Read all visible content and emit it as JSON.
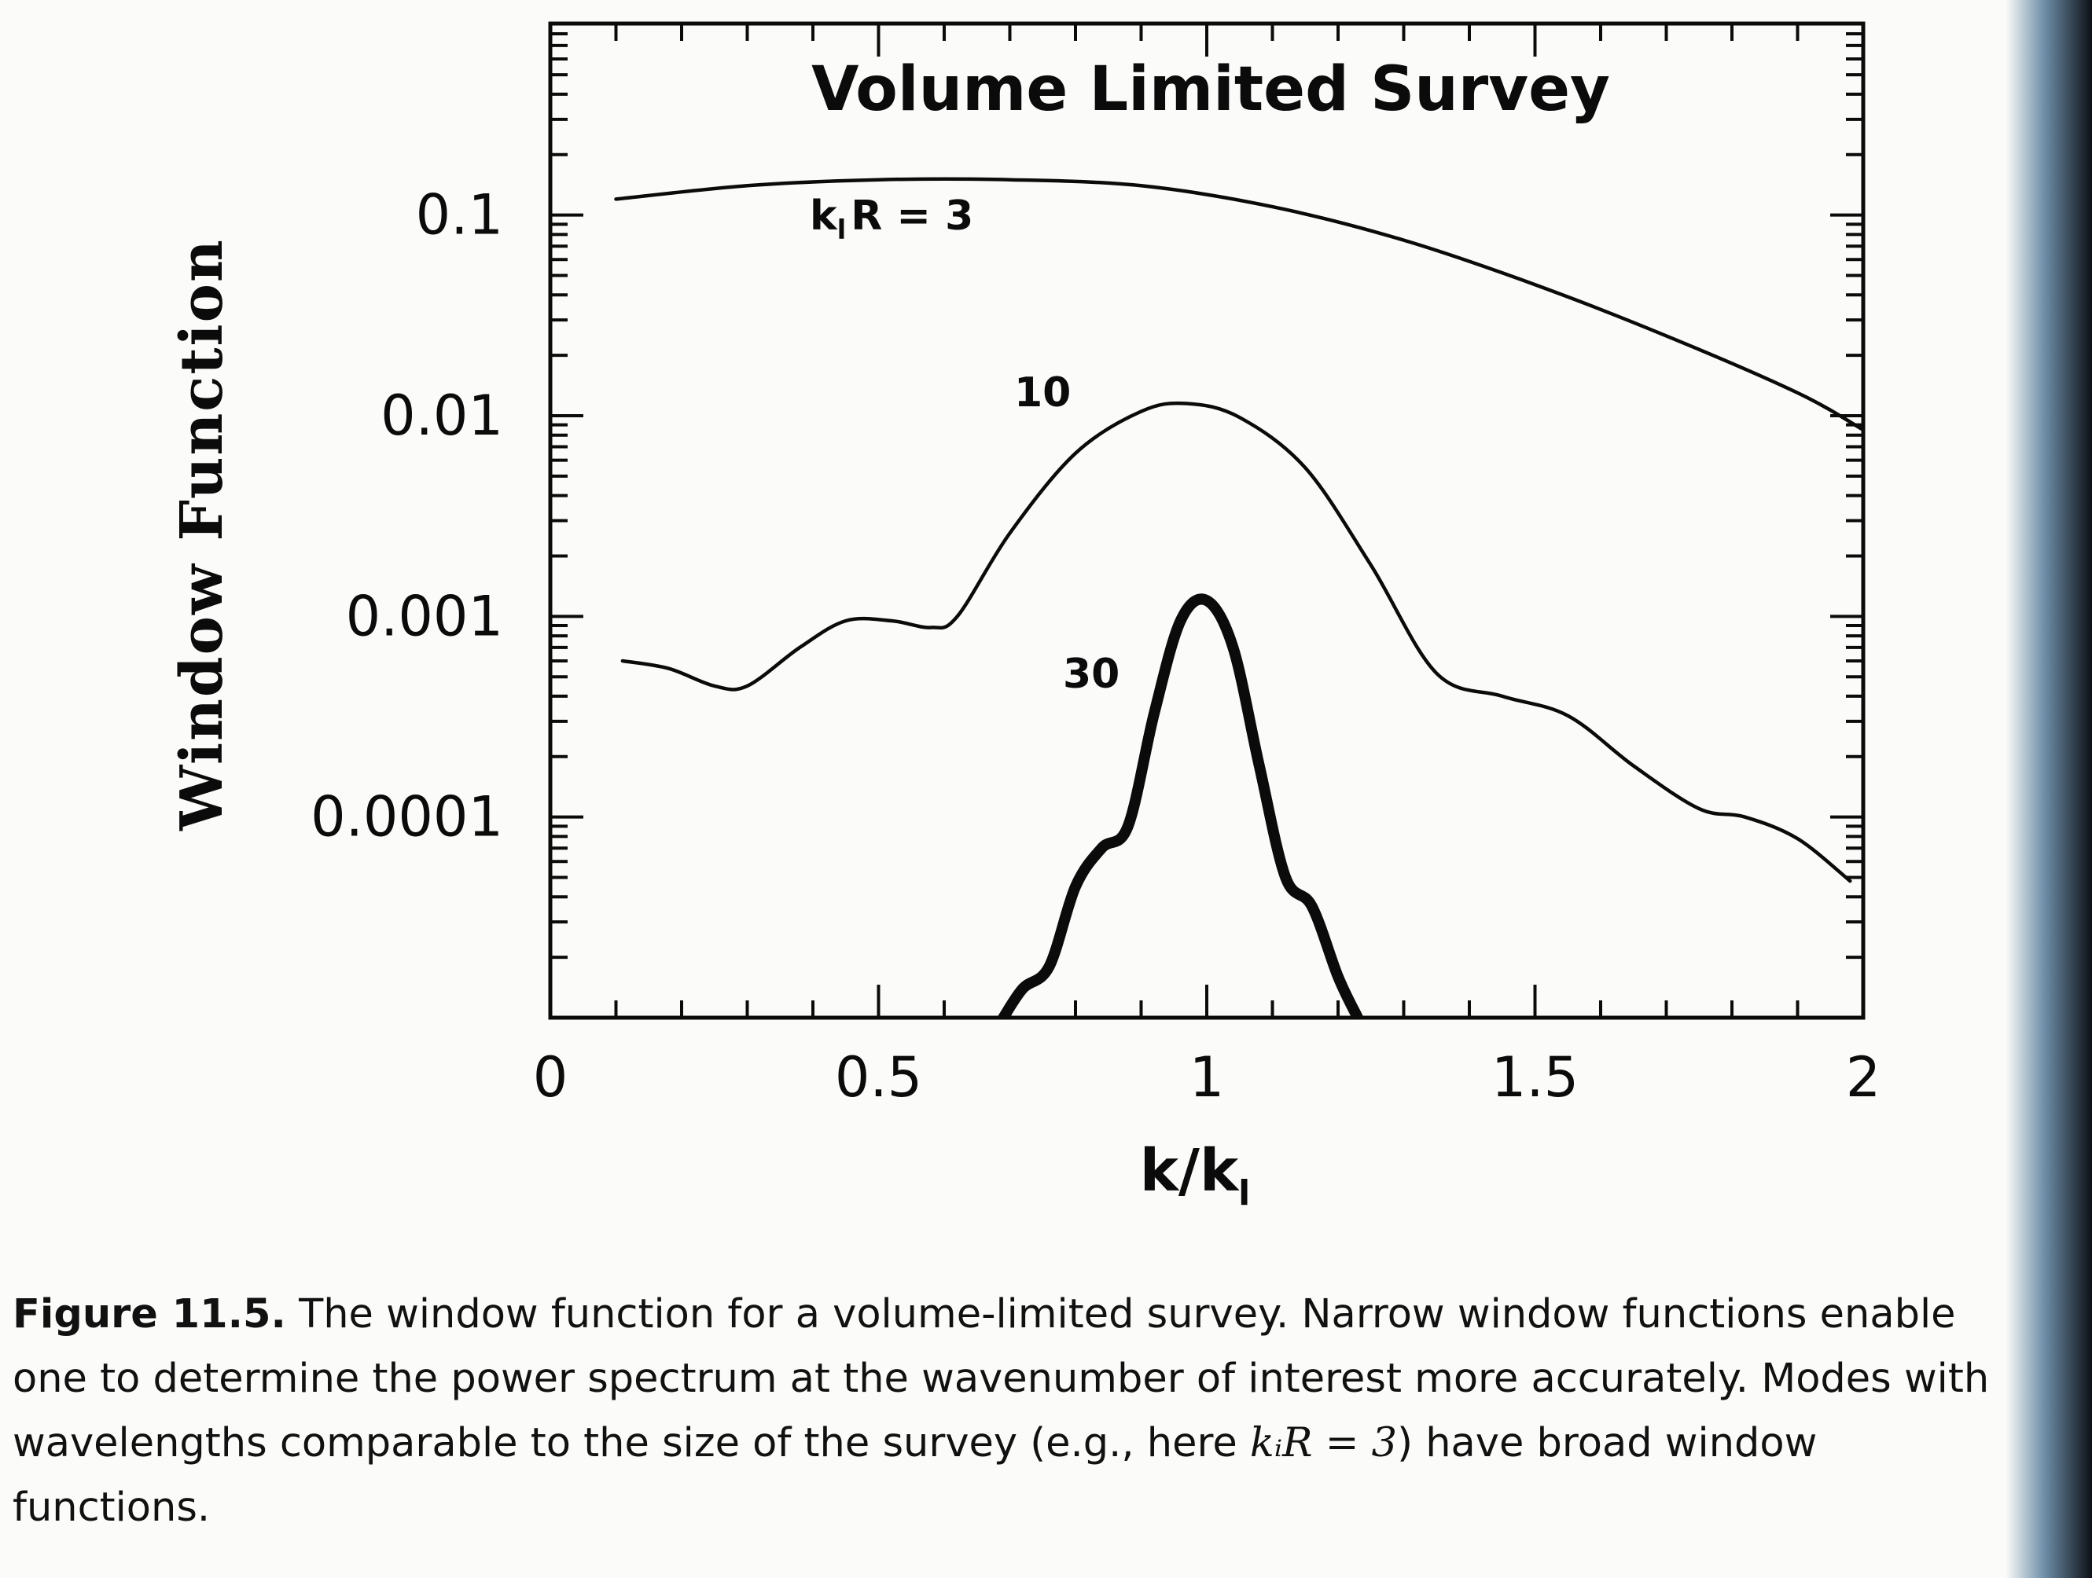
{
  "chart_data": {
    "type": "line",
    "title": "Volume Limited Survey",
    "xlabel": "k/k",
    "xlabel_subscript": "l",
    "ylabel": "Window Function",
    "x_ticks": [
      "0",
      "0.5",
      "1",
      "1.5",
      "2"
    ],
    "y_ticks": [
      "0.1",
      "0.01",
      "0.001",
      "0.0001"
    ],
    "xlim": [
      0,
      2
    ],
    "ylim": [
      1e-05,
      0.9
    ],
    "y_scale": "log",
    "grid": false,
    "series": [
      {
        "name": "k_lR = 3",
        "label_prefix": "k",
        "label_sub": "l",
        "label_suffix": "R = 3",
        "line_weight": "thin",
        "x": [
          0.1,
          0.3,
          0.5,
          0.7,
          0.9,
          1.1,
          1.3,
          1.5,
          1.7,
          1.9,
          2.0
        ],
        "y": [
          0.12,
          0.14,
          0.15,
          0.15,
          0.14,
          0.11,
          0.075,
          0.045,
          0.025,
          0.013,
          0.0085
        ]
      },
      {
        "name": "10",
        "label": "10",
        "line_weight": "thin",
        "x": [
          0.11,
          0.18,
          0.25,
          0.3,
          0.38,
          0.45,
          0.52,
          0.58,
          0.62,
          0.7,
          0.8,
          0.9,
          0.97,
          1.05,
          1.15,
          1.25,
          1.35,
          1.45,
          1.55,
          1.65,
          1.75,
          1.82,
          1.9,
          1.98
        ],
        "y": [
          0.0006,
          0.00055,
          0.00045,
          0.00045,
          0.0007,
          0.00095,
          0.00095,
          0.00088,
          0.001,
          0.0026,
          0.0065,
          0.0105,
          0.0115,
          0.0098,
          0.0055,
          0.0018,
          0.00052,
          0.0004,
          0.00032,
          0.00018,
          0.00011,
          0.0001,
          7.8e-05,
          4.8e-05
        ]
      },
      {
        "name": "30",
        "label": "30",
        "line_weight": "thick",
        "x": [
          0.69,
          0.72,
          0.76,
          0.8,
          0.84,
          0.88,
          0.92,
          0.96,
          1.0,
          1.04,
          1.08,
          1.12,
          1.16,
          1.2,
          1.23
        ],
        "y": [
          1e-05,
          1.4e-05,
          1.8e-05,
          4.5e-05,
          7e-05,
          9e-05,
          0.00033,
          0.00095,
          0.0012,
          0.0007,
          0.00018,
          5e-05,
          3.6e-05,
          1.6e-05,
          1e-05
        ]
      }
    ]
  },
  "caption": {
    "figure_number": "Figure 11.5.",
    "text_before_math": "The window function for a volume-limited survey. Narrow window functions enable one to determine the power spectrum at the wavenumber of interest more accurately. Modes with wavelengths comparable to the size of the survey (e.g., here",
    "math": "kᵢR = 3",
    "text_after_math": ") have broad window functions."
  }
}
